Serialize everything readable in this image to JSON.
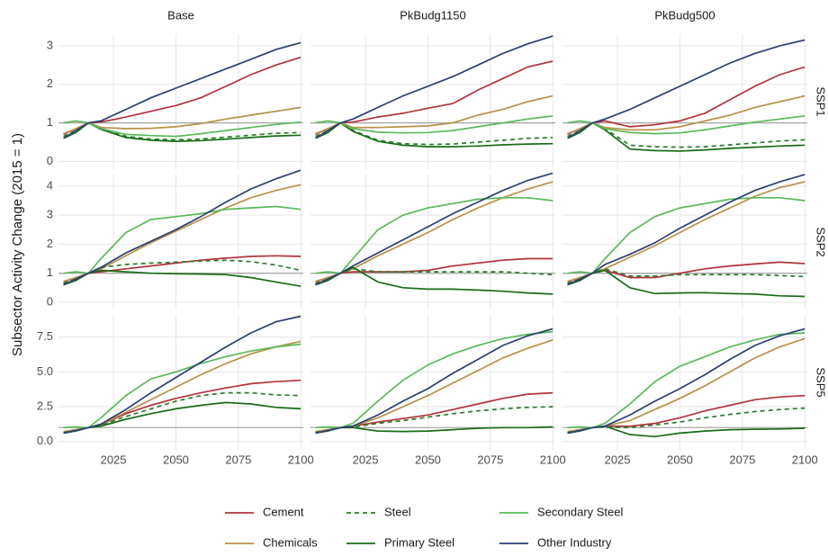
{
  "chart_data": {
    "type": "line",
    "ylabel": "Subsector Activity Change (2015 = 1)",
    "x": [
      2005,
      2010,
      2015,
      2020,
      2030,
      2040,
      2050,
      2060,
      2070,
      2080,
      2090,
      2100
    ],
    "xlim": [
      2003,
      2101
    ],
    "xticks": [
      2025,
      2050,
      2075,
      2100
    ],
    "reference_line": 1,
    "grid": true,
    "columns": [
      "Base",
      "PkBudg1150",
      "PkBudg500"
    ],
    "series": [
      {
        "name": "Cement",
        "color": "#b2333d",
        "dash": false
      },
      {
        "name": "Chemicals",
        "color": "#b8914a",
        "dash": false
      },
      {
        "name": "Steel",
        "color": "#2d7a2d",
        "dash": true
      },
      {
        "name": "Primary Steel",
        "color": "#1a6b1a",
        "dash": false
      },
      {
        "name": "Secondary Steel",
        "color": "#5cb85c",
        "dash": false
      },
      {
        "name": "Other Industry",
        "color": "#2b3f73",
        "dash": false
      }
    ],
    "rows": [
      {
        "name": "SSP1",
        "ylim": [
          -0.2,
          3.3
        ],
        "yticks": [
          0,
          1,
          2,
          3
        ],
        "panels": [
          {
            "values": [
              [
                0.7,
                0.85,
                1,
                1.02,
                1.15,
                1.3,
                1.45,
                1.65,
                1.95,
                2.25,
                2.5,
                2.7
              ],
              [
                0.72,
                0.85,
                1,
                0.88,
                0.85,
                0.86,
                0.9,
                0.98,
                1.1,
                1.2,
                1.3,
                1.4
              ],
              [
                0.65,
                0.8,
                1,
                0.85,
                0.65,
                0.58,
                0.56,
                0.58,
                0.63,
                0.68,
                0.73,
                0.75
              ],
              [
                0.6,
                0.75,
                1,
                0.83,
                0.62,
                0.55,
                0.52,
                0.54,
                0.58,
                0.62,
                0.66,
                0.68
              ],
              [
                1,
                1.05,
                1,
                0.85,
                0.7,
                0.67,
                0.65,
                0.72,
                0.8,
                0.88,
                0.96,
                1.02
              ],
              [
                0.6,
                0.8,
                1,
                1.05,
                1.35,
                1.65,
                1.9,
                2.15,
                2.4,
                2.65,
                2.9,
                3.08
              ]
            ]
          },
          {
            "values": [
              [
                0.7,
                0.85,
                1,
                1.02,
                1.15,
                1.25,
                1.38,
                1.5,
                1.85,
                2.15,
                2.45,
                2.6
              ],
              [
                0.72,
                0.85,
                1,
                0.88,
                0.88,
                0.9,
                0.92,
                1.0,
                1.2,
                1.35,
                1.55,
                1.7
              ],
              [
                0.65,
                0.8,
                1,
                0.8,
                0.55,
                0.46,
                0.44,
                0.45,
                0.5,
                0.55,
                0.6,
                0.62
              ],
              [
                0.6,
                0.75,
                1,
                0.78,
                0.52,
                0.42,
                0.38,
                0.38,
                0.4,
                0.43,
                0.45,
                0.46
              ],
              [
                1,
                1.05,
                1,
                0.85,
                0.76,
                0.74,
                0.75,
                0.8,
                0.9,
                1.0,
                1.1,
                1.18
              ],
              [
                0.6,
                0.8,
                1,
                1.1,
                1.4,
                1.7,
                1.95,
                2.2,
                2.5,
                2.8,
                3.05,
                3.25
              ]
            ]
          },
          {
            "values": [
              [
                0.7,
                0.85,
                1,
                1.05,
                0.9,
                0.95,
                1.05,
                1.25,
                1.6,
                1.95,
                2.25,
                2.45
              ],
              [
                0.72,
                0.85,
                1,
                0.88,
                0.82,
                0.82,
                0.9,
                1.05,
                1.2,
                1.4,
                1.55,
                1.7
              ],
              [
                0.65,
                0.8,
                1,
                0.85,
                0.42,
                0.38,
                0.37,
                0.38,
                0.43,
                0.48,
                0.53,
                0.56
              ],
              [
                0.6,
                0.75,
                1,
                0.82,
                0.32,
                0.28,
                0.27,
                0.3,
                0.34,
                0.37,
                0.4,
                0.42
              ],
              [
                1,
                1.05,
                1,
                0.85,
                0.75,
                0.72,
                0.74,
                0.82,
                0.92,
                1.02,
                1.1,
                1.18
              ],
              [
                0.6,
                0.8,
                1,
                1.1,
                1.35,
                1.65,
                1.95,
                2.25,
                2.55,
                2.8,
                3.0,
                3.15
              ]
            ]
          }
        ]
      },
      {
        "name": "SSP2",
        "ylim": [
          -0.25,
          4.4
        ],
        "yticks": [
          0,
          1,
          2,
          3,
          4
        ],
        "panels": [
          {
            "values": [
              [
                0.7,
                0.85,
                1,
                1.05,
                1.15,
                1.25,
                1.35,
                1.45,
                1.52,
                1.58,
                1.6,
                1.58
              ],
              [
                0.72,
                0.85,
                1,
                1.15,
                1.6,
                2.05,
                2.45,
                2.85,
                3.25,
                3.6,
                3.85,
                4.05
              ],
              [
                0.65,
                0.8,
                1,
                1.2,
                1.3,
                1.35,
                1.38,
                1.42,
                1.45,
                1.4,
                1.28,
                1.1
              ],
              [
                0.6,
                0.75,
                1,
                1.1,
                1.05,
                1.0,
                0.98,
                0.97,
                0.95,
                0.85,
                0.7,
                0.55
              ],
              [
                1,
                1.05,
                1,
                1.5,
                2.4,
                2.85,
                2.95,
                3.05,
                3.2,
                3.25,
                3.3,
                3.2
              ],
              [
                0.6,
                0.8,
                1,
                1.2,
                1.7,
                2.1,
                2.5,
                2.95,
                3.45,
                3.9,
                4.25,
                4.55
              ]
            ]
          },
          {
            "values": [
              [
                0.7,
                0.85,
                1,
                1.05,
                1.05,
                1.05,
                1.1,
                1.25,
                1.35,
                1.45,
                1.5,
                1.5
              ],
              [
                0.72,
                0.85,
                1,
                1.15,
                1.6,
                2.0,
                2.4,
                2.85,
                3.25,
                3.6,
                3.9,
                4.15
              ],
              [
                0.65,
                0.8,
                1,
                1.15,
                1.05,
                1.05,
                1.05,
                1.05,
                1.05,
                1.05,
                1.0,
                0.95
              ],
              [
                0.6,
                0.75,
                1,
                1.2,
                0.7,
                0.5,
                0.45,
                0.45,
                0.42,
                0.38,
                0.32,
                0.28
              ],
              [
                1,
                1.05,
                1,
                1.5,
                2.5,
                3.0,
                3.25,
                3.4,
                3.55,
                3.6,
                3.6,
                3.5
              ],
              [
                0.6,
                0.8,
                1,
                1.25,
                1.7,
                2.15,
                2.6,
                3.05,
                3.45,
                3.85,
                4.2,
                4.45
              ]
            ]
          },
          {
            "values": [
              [
                0.7,
                0.85,
                1,
                1.1,
                0.85,
                0.85,
                1.0,
                1.15,
                1.25,
                1.32,
                1.38,
                1.33
              ],
              [
                0.72,
                0.85,
                1,
                1.15,
                1.55,
                1.95,
                2.4,
                2.85,
                3.25,
                3.65,
                3.95,
                4.15
              ],
              [
                0.65,
                0.8,
                1,
                1.15,
                0.9,
                0.9,
                0.95,
                0.95,
                0.95,
                0.95,
                0.92,
                0.88
              ],
              [
                0.6,
                0.75,
                1,
                1.1,
                0.5,
                0.3,
                0.32,
                0.33,
                0.3,
                0.28,
                0.22,
                0.2
              ],
              [
                1,
                1.05,
                1,
                1.5,
                2.4,
                2.95,
                3.25,
                3.4,
                3.55,
                3.6,
                3.6,
                3.5
              ],
              [
                0.6,
                0.8,
                1,
                1.3,
                1.65,
                2.05,
                2.55,
                3.0,
                3.45,
                3.85,
                4.15,
                4.4
              ]
            ]
          }
        ]
      },
      {
        "name": "SSP5",
        "ylim": [
          -0.6,
          9.1
        ],
        "yticks": [
          {
            "value": 0,
            "label": "0.0"
          },
          2.5,
          {
            "value": 5,
            "label": "5.0"
          },
          7.5
        ],
        "panels": [
          {
            "values": [
              [
                0.7,
                0.85,
                1,
                1.2,
                2.0,
                2.6,
                3.1,
                3.5,
                3.85,
                4.15,
                4.3,
                4.4
              ],
              [
                0.7,
                0.85,
                1,
                1.2,
                2.1,
                3.0,
                3.9,
                4.8,
                5.6,
                6.3,
                6.8,
                7.2
              ],
              [
                0.65,
                0.8,
                1,
                1.15,
                1.8,
                2.35,
                2.9,
                3.3,
                3.5,
                3.5,
                3.35,
                3.3
              ],
              [
                0.6,
                0.75,
                1,
                1.1,
                1.6,
                2.0,
                2.35,
                2.6,
                2.8,
                2.7,
                2.45,
                2.35
              ],
              [
                1,
                1.05,
                1,
                1.7,
                3.3,
                4.5,
                5.0,
                5.6,
                6.1,
                6.5,
                6.8,
                7.0
              ],
              [
                0.6,
                0.8,
                1,
                1.25,
                2.3,
                3.5,
                4.6,
                5.7,
                6.8,
                7.8,
                8.6,
                9.0
              ]
            ]
          },
          {
            "values": [
              [
                0.7,
                0.85,
                1,
                1.1,
                1.4,
                1.65,
                1.9,
                2.3,
                2.7,
                3.1,
                3.4,
                3.5
              ],
              [
                0.7,
                0.85,
                1,
                1.1,
                1.7,
                2.5,
                3.3,
                4.2,
                5.1,
                6.0,
                6.7,
                7.3
              ],
              [
                0.65,
                0.8,
                1,
                1.05,
                1.3,
                1.5,
                1.75,
                2.0,
                2.2,
                2.35,
                2.45,
                2.5
              ],
              [
                0.6,
                0.75,
                1,
                1.0,
                0.75,
                0.72,
                0.75,
                0.85,
                0.95,
                1.0,
                1.0,
                1.05
              ],
              [
                1,
                1.05,
                1,
                1.3,
                2.9,
                4.4,
                5.5,
                6.3,
                6.9,
                7.4,
                7.7,
                7.9
              ],
              [
                0.6,
                0.8,
                1,
                1.1,
                1.9,
                2.9,
                3.8,
                4.9,
                5.9,
                6.9,
                7.6,
                8.1
              ]
            ]
          },
          {
            "values": [
              [
                0.7,
                0.85,
                1,
                1.1,
                1.1,
                1.3,
                1.7,
                2.2,
                2.6,
                3.0,
                3.2,
                3.3
              ],
              [
                0.7,
                0.85,
                1,
                1.1,
                1.5,
                2.3,
                3.1,
                4.0,
                5.0,
                6.0,
                6.8,
                7.4
              ],
              [
                0.65,
                0.8,
                1,
                1.05,
                1.0,
                1.2,
                1.4,
                1.7,
                1.95,
                2.15,
                2.3,
                2.4
              ],
              [
                0.6,
                0.75,
                1,
                1.1,
                0.5,
                0.35,
                0.6,
                0.75,
                0.85,
                0.88,
                0.9,
                0.95
              ],
              [
                1,
                1.05,
                1,
                1.3,
                2.7,
                4.3,
                5.4,
                6.1,
                6.8,
                7.3,
                7.7,
                7.8
              ],
              [
                0.6,
                0.8,
                1,
                1.1,
                1.9,
                2.9,
                3.8,
                4.8,
                5.9,
                6.9,
                7.6,
                8.1
              ]
            ]
          }
        ]
      }
    ]
  }
}
